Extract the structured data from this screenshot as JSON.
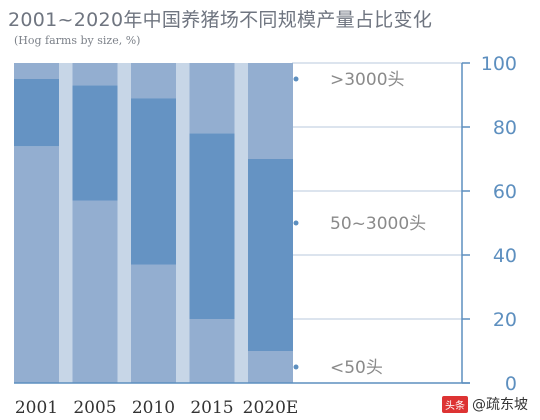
{
  "chart_data": {
    "type": "bar",
    "stacked": true,
    "title": "2001~2020年中国养猪场不同规模产量占比变化",
    "subtitle": "(Hog farms by size, %)",
    "categories": [
      "2001",
      "2005",
      "2010",
      "2015",
      "2020E"
    ],
    "series": [
      {
        "name": "<50头",
        "color": "#93aed0",
        "values": [
          74,
          57,
          37,
          20,
          10
        ]
      },
      {
        "name": "50~3000头",
        "color": "#6593c3",
        "values": [
          21,
          36,
          52,
          58,
          60
        ]
      },
      {
        "name": ">3000头",
        "color": "#93aed0",
        "values": [
          5,
          7,
          11,
          22,
          30
        ]
      }
    ],
    "series_label_values": [
      5,
      50,
      95
    ],
    "y_ticks": [
      "0",
      "20",
      "40",
      "60",
      "80",
      "100"
    ],
    "ylim": [
      0,
      100
    ],
    "grid": true,
    "colors": {
      "background": "#ffffff",
      "band": "#c7d6e7",
      "axis": "#5d8fbf",
      "tick_text": "#5d8fbf",
      "annotation_text": "#8a8a8a",
      "category_text": "#333333"
    }
  },
  "watermark": {
    "badge": "头条",
    "text": "@疏东坡"
  }
}
